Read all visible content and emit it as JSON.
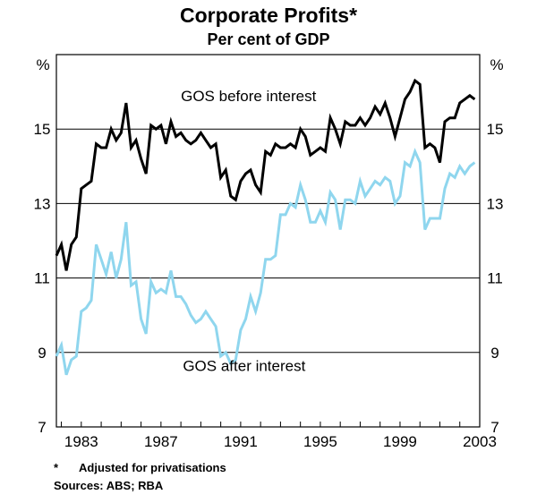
{
  "chart_data": {
    "type": "line",
    "title": "Corporate Profits*",
    "subtitle": "Per cent of GDP",
    "ylabel_left": "%",
    "ylabel_right": "%",
    "ylim": [
      7,
      17
    ],
    "yticks": [
      7,
      9,
      11,
      13,
      15
    ],
    "xlim": [
      1981.75,
      2003.0
    ],
    "xticks": [
      1983,
      1987,
      1991,
      1995,
      1999,
      2003
    ],
    "series": [
      {
        "name": "GOS before interest",
        "color": "#000000",
        "x": [
          1981.75,
          1982.0,
          1982.25,
          1982.5,
          1982.75,
          1983.0,
          1983.25,
          1983.5,
          1983.75,
          1984.0,
          1984.25,
          1984.5,
          1984.75,
          1985.0,
          1985.25,
          1985.5,
          1985.75,
          1986.0,
          1986.25,
          1986.5,
          1986.75,
          1987.0,
          1987.25,
          1987.5,
          1987.75,
          1988.0,
          1988.25,
          1988.5,
          1988.75,
          1989.0,
          1989.25,
          1989.5,
          1989.75,
          1990.0,
          1990.25,
          1990.5,
          1990.75,
          1991.0,
          1991.25,
          1991.5,
          1991.75,
          1992.0,
          1992.25,
          1992.5,
          1992.75,
          1993.0,
          1993.25,
          1993.5,
          1993.75,
          1994.0,
          1994.25,
          1994.5,
          1994.75,
          1995.0,
          1995.25,
          1995.5,
          1995.75,
          1996.0,
          1996.25,
          1996.5,
          1996.75,
          1997.0,
          1997.25,
          1997.5,
          1997.75,
          1998.0,
          1998.25,
          1998.5,
          1998.75,
          1999.0,
          1999.25,
          1999.5,
          1999.75,
          2000.0,
          2000.25,
          2000.5,
          2000.75,
          2001.0,
          2001.25,
          2001.5,
          2001.75,
          2002.0,
          2002.25,
          2002.5,
          2002.75
        ],
        "values": [
          11.6,
          11.9,
          11.2,
          11.9,
          12.1,
          13.4,
          13.5,
          13.6,
          14.6,
          14.5,
          14.5,
          15.0,
          14.7,
          14.9,
          15.7,
          14.5,
          14.7,
          14.2,
          13.8,
          15.1,
          15.0,
          15.1,
          14.6,
          15.2,
          14.8,
          14.9,
          14.7,
          14.6,
          14.7,
          14.9,
          14.7,
          14.5,
          14.6,
          13.7,
          13.9,
          13.2,
          13.1,
          13.6,
          13.8,
          13.9,
          13.5,
          13.3,
          14.4,
          14.3,
          14.6,
          14.5,
          14.5,
          14.6,
          14.5,
          15.0,
          14.8,
          14.3,
          14.4,
          14.5,
          14.4,
          15.3,
          15.0,
          14.6,
          15.2,
          15.1,
          15.1,
          15.3,
          15.1,
          15.3,
          15.6,
          15.4,
          15.7,
          15.3,
          14.8,
          15.3,
          15.8,
          16.0,
          16.3,
          16.2,
          14.5,
          14.6,
          14.5,
          14.1,
          15.2,
          15.3,
          15.3,
          15.7,
          15.8,
          15.9,
          15.8
        ]
      },
      {
        "name": "GOS after interest",
        "color": "#8fd6ee",
        "x": [
          1981.75,
          1982.0,
          1982.25,
          1982.5,
          1982.75,
          1983.0,
          1983.25,
          1983.5,
          1983.75,
          1984.0,
          1984.25,
          1984.5,
          1984.75,
          1985.0,
          1985.25,
          1985.5,
          1985.75,
          1986.0,
          1986.25,
          1986.5,
          1986.75,
          1987.0,
          1987.25,
          1987.5,
          1987.75,
          1988.0,
          1988.25,
          1988.5,
          1988.75,
          1989.0,
          1989.25,
          1989.5,
          1989.75,
          1990.0,
          1990.25,
          1990.5,
          1990.75,
          1991.0,
          1991.25,
          1991.5,
          1991.75,
          1992.0,
          1992.25,
          1992.5,
          1992.75,
          1993.0,
          1993.25,
          1993.5,
          1993.75,
          1994.0,
          1994.25,
          1994.5,
          1994.75,
          1995.0,
          1995.25,
          1995.5,
          1995.75,
          1996.0,
          1996.25,
          1996.5,
          1996.75,
          1997.0,
          1997.25,
          1997.5,
          1997.75,
          1998.0,
          1998.25,
          1998.5,
          1998.75,
          1999.0,
          1999.25,
          1999.5,
          1999.75,
          2000.0,
          2000.25,
          2000.5,
          2000.75,
          2001.0,
          2001.25,
          2001.5,
          2001.75,
          2002.0,
          2002.25,
          2002.5,
          2002.75
        ],
        "values": [
          8.9,
          9.2,
          8.4,
          8.8,
          8.9,
          10.1,
          10.2,
          10.4,
          11.9,
          11.5,
          11.1,
          11.7,
          11.0,
          11.5,
          12.5,
          10.8,
          10.9,
          9.9,
          9.5,
          10.9,
          10.6,
          10.7,
          10.6,
          11.2,
          10.5,
          10.5,
          10.3,
          10.0,
          9.8,
          9.9,
          10.1,
          9.9,
          9.7,
          8.9,
          9.0,
          8.7,
          8.8,
          9.6,
          9.9,
          10.5,
          10.1,
          10.6,
          11.5,
          11.5,
          11.6,
          12.7,
          12.7,
          13.0,
          12.9,
          13.5,
          13.1,
          12.5,
          12.5,
          12.8,
          12.5,
          13.3,
          13.1,
          12.3,
          13.1,
          13.1,
          13.0,
          13.6,
          13.2,
          13.4,
          13.6,
          13.5,
          13.7,
          13.6,
          13.0,
          13.2,
          14.1,
          14.0,
          14.4,
          14.1,
          12.3,
          12.6,
          12.6,
          12.6,
          13.4,
          13.8,
          13.7,
          14.0,
          13.8,
          14.0,
          14.1
        ]
      }
    ],
    "annotations": [
      {
        "text": "GOS before interest",
        "x": 1988.0,
        "y": 15.75
      },
      {
        "text": "GOS after interest",
        "x": 1988.1,
        "y": 8.5
      }
    ]
  },
  "footnote": {
    "marker": "*",
    "text": "Adjusted for privatisations"
  },
  "sources": "Sources: ABS; RBA"
}
